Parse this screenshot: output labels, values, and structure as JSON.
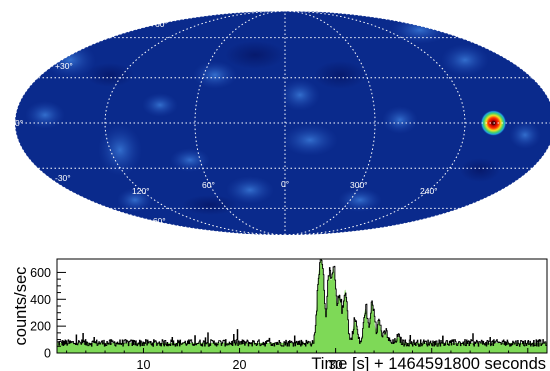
{
  "chart_data": [
    {
      "type": "heatmap",
      "projection": "mollweide",
      "colormap": "dark blue to cyan, green, yellow, red",
      "colors": {
        "background": "#0a2a8c",
        "grid": "#ffffff",
        "hotspot_core": "#5a0000",
        "hotspot_ring": "#f0e020"
      },
      "hotspot": {
        "ra_deg": 221,
        "dec_deg": 0
      },
      "longitude_labels": [
        "120°",
        "60°",
        "0°",
        "300°",
        "240°"
      ],
      "latitude_labels_left": [
        "+60°",
        "+30°",
        "0°",
        "-30°",
        "-60°"
      ],
      "grid": "dotted, every 60° in longitude and 30° in latitude"
    },
    {
      "type": "area",
      "ylabel": "counts/sec",
      "xlabel": "Time [s] + 1464591800 seconds",
      "xlim": [
        1,
        52
      ],
      "ylim": [
        0,
        700
      ],
      "x_ticks": [
        "10",
        "20",
        "30"
      ],
      "y_ticks": [
        "0",
        "200",
        "400",
        "600"
      ],
      "grid": false,
      "series": [
        {
          "role": "measured rate",
          "style": "black step line",
          "color": "#000000"
        },
        {
          "role": "filled curve",
          "style": "green filled area",
          "color": "#7ed957"
        }
      ],
      "baseline": 75,
      "peaks": [
        {
          "x": 28.2,
          "y": 500
        },
        {
          "x": 28.6,
          "y": 640
        },
        {
          "x": 29.3,
          "y": 560
        },
        {
          "x": 29.8,
          "y": 610
        },
        {
          "x": 30.4,
          "y": 430
        },
        {
          "x": 31.0,
          "y": 470
        },
        {
          "x": 32.0,
          "y": 250
        },
        {
          "x": 33.1,
          "y": 330
        },
        {
          "x": 33.8,
          "y": 380
        },
        {
          "x": 34.5,
          "y": 240
        },
        {
          "x": 35.2,
          "y": 160
        },
        {
          "x": 36.5,
          "y": 120
        }
      ]
    }
  ]
}
